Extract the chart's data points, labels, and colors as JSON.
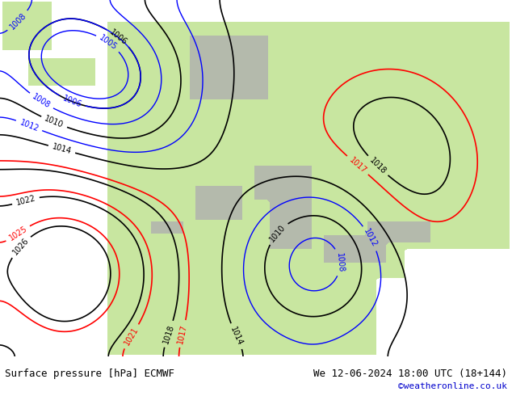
{
  "title_left": "Surface pressure [hPa] ECMWF",
  "title_right": "We 12-06-2024 18:00 UTC (18+144)",
  "copyright": "©weatheronline.co.uk",
  "bg_color": "#d0e8f0",
  "land_color": "#c8e6a0",
  "gray_color": "#b0b0b0",
  "bottom_bar_color": "#e8e8e8",
  "text_color": "#000000",
  "copyright_color": "#0000cc",
  "figsize": [
    6.34,
    4.9
  ],
  "dpi": 100
}
